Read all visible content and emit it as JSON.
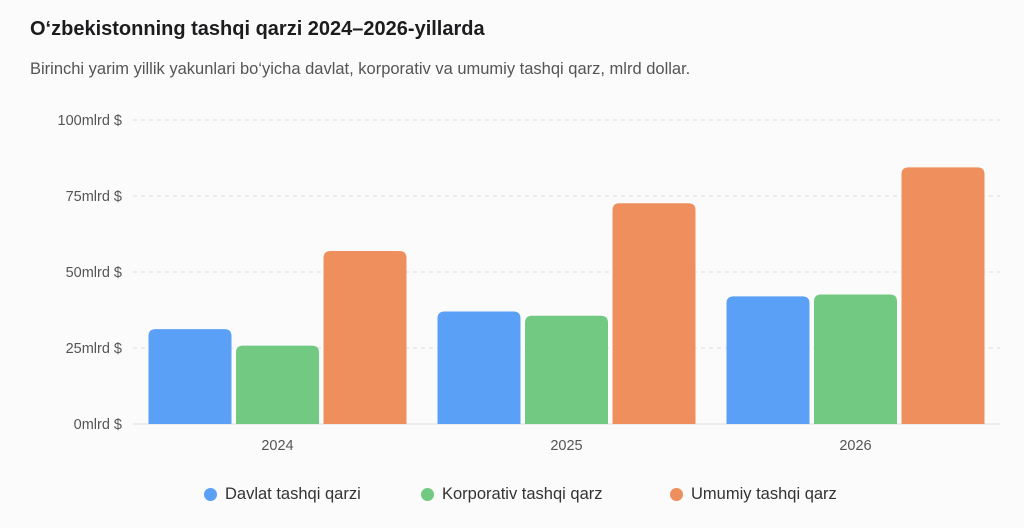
{
  "chart_data": {
    "type": "bar",
    "title": "O‘zbekistonning tashqi qarzi 2024–2026-yillarda",
    "subtitle": "Birinchi yarim yillik yakunlari bo‘yicha davlat, korporativ va umumiy tashqi qarz, mlrd dollar.",
    "categories": [
      "2024",
      "2025",
      "2026"
    ],
    "series": [
      {
        "name": "Davlat tashqi qarzi",
        "values": [
          31.2,
          37.0,
          42.0
        ],
        "color": "#5aa0f6"
      },
      {
        "name": "Korporativ tashqi qarz",
        "values": [
          25.8,
          35.6,
          42.6
        ],
        "color": "#72ca82"
      },
      {
        "name": "Umumiy tashqi qarz",
        "values": [
          56.9,
          72.6,
          84.4
        ],
        "color": "#ef8f5d"
      }
    ],
    "ylim": [
      0,
      100
    ],
    "yticks": [
      0,
      25,
      50,
      75,
      100
    ],
    "ytick_labels": [
      "0mlrd $",
      "25mlrd $",
      "50mlrd $",
      "75mlrd $",
      "100mlrd $"
    ],
    "xlabel": "",
    "ylabel": "",
    "grid": true,
    "legend_position": "bottom"
  }
}
